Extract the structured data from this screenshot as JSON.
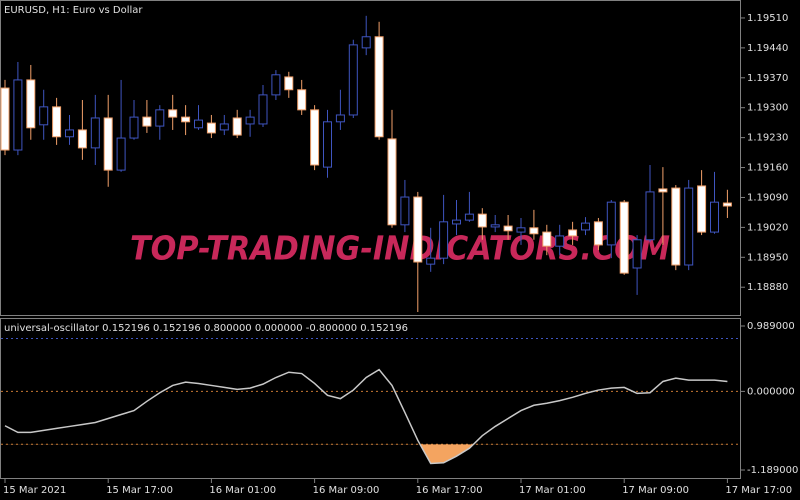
{
  "chart_data": [
    {
      "type": "candlestick",
      "title": "EURUSD, H1:  Euro vs Dollar",
      "watermark": "TOP-TRADING-INDICATORS.COM",
      "categories": [
        "15 Mar 2021",
        null,
        null,
        null,
        null,
        null,
        null,
        null,
        "15 Mar 17:00",
        null,
        null,
        null,
        null,
        null,
        null,
        null,
        "16 Mar 01:00",
        null,
        null,
        null,
        null,
        null,
        null,
        null,
        "16 Mar 09:00",
        null,
        null,
        null,
        null,
        null,
        null,
        null,
        "16 Mar 17:00",
        null,
        null,
        null,
        null,
        null,
        null,
        null,
        "17 Mar 01:00",
        null,
        null,
        null,
        null,
        null,
        null,
        null,
        "17 Mar 09:00",
        null,
        null,
        null,
        null,
        null,
        null,
        null,
        "17 Mar 17:00"
      ],
      "open": [
        1.19346,
        1.19201,
        1.19365,
        1.1926,
        1.19302,
        1.19232,
        1.19248,
        1.19206,
        1.19276,
        1.19154,
        1.19229,
        1.19278,
        1.19257,
        1.19295,
        1.19278,
        1.19253,
        1.19264,
        1.19248,
        1.19276,
        1.19262,
        1.19262,
        1.1933,
        1.19372,
        1.19342,
        1.19295,
        1.19161,
        1.19267,
        1.19283,
        1.1944,
        1.19466,
        1.19227,
        1.19026,
        1.19091,
        1.18934,
        1.18948,
        1.19028,
        1.19037,
        1.19051,
        1.19021,
        1.19023,
        1.19009,
        1.19019,
        1.19009,
        1.18976,
        1.19014,
        1.19014,
        1.19033,
        1.18979,
        1.19079,
        1.18925,
        1.18991,
        1.1911,
        1.19112,
        1.18932,
        1.19117,
        1.19009,
        1.19077
      ],
      "high": [
        1.19365,
        1.19407,
        1.194,
        1.19342,
        1.19323,
        1.19283,
        1.19318,
        1.1933,
        1.1933,
        1.19365,
        1.19318,
        1.19318,
        1.19306,
        1.1933,
        1.19306,
        1.19306,
        1.19283,
        1.19283,
        1.19295,
        1.19295,
        1.19353,
        1.19388,
        1.19384,
        1.19365,
        1.19306,
        1.19295,
        1.19342,
        1.19459,
        1.19515,
        1.19501,
        1.19295,
        1.19131,
        1.19103,
        1.19019,
        1.19096,
        1.19084,
        1.19103,
        1.19065,
        1.19049,
        1.19049,
        1.19042,
        1.19061,
        1.19026,
        1.19026,
        1.19033,
        1.19044,
        1.19042,
        1.19084,
        1.19084,
        1.19002,
        1.19166,
        1.19161,
        1.19119,
        1.19131,
        1.19154,
        1.1915,
        1.19108
      ],
      "low": [
        1.19189,
        1.19189,
        1.19225,
        1.19225,
        1.19213,
        1.19213,
        1.19178,
        1.19166,
        1.19115,
        1.1915,
        1.19225,
        1.19241,
        1.19225,
        1.19248,
        1.19236,
        1.19248,
        1.19229,
        1.19236,
        1.19229,
        1.19232,
        1.19255,
        1.19318,
        1.19323,
        1.19283,
        1.19154,
        1.19136,
        1.19248,
        1.19276,
        1.19423,
        1.19225,
        1.19019,
        1.19009,
        1.18822,
        1.18916,
        1.18934,
        1.19002,
        1.19033,
        1.18991,
        1.19009,
        1.18991,
        1.18979,
        1.18991,
        1.18955,
        1.18955,
        1.18979,
        1.19002,
        1.18967,
        1.18948,
        1.18909,
        1.18862,
        1.18986,
        1.18979,
        1.1892,
        1.1892,
        1.19002,
        1.19005,
        1.19042
      ],
      "close": [
        1.19201,
        1.19365,
        1.19253,
        1.19302,
        1.19232,
        1.19248,
        1.19206,
        1.19276,
        1.19154,
        1.19229,
        1.19278,
        1.19257,
        1.19295,
        1.19278,
        1.19267,
        1.19271,
        1.19241,
        1.19262,
        1.19236,
        1.19278,
        1.1933,
        1.19377,
        1.19342,
        1.19295,
        1.19166,
        1.19267,
        1.19283,
        1.19447,
        1.19466,
        1.19232,
        1.19026,
        1.19091,
        1.18939,
        1.18948,
        1.19033,
        1.19037,
        1.19051,
        1.19021,
        1.19026,
        1.19012,
        1.19019,
        1.19005,
        1.18976,
        1.19,
        1.19,
        1.1903,
        1.18979,
        1.19079,
        1.18913,
        1.18991,
        1.19103,
        1.19103,
        1.18932,
        1.19112,
        1.19009,
        1.19079,
        1.1907
      ],
      "up_color": "#3f55c0",
      "down_color": "#f2a06a",
      "down_body_color": "#ffffff",
      "ylim": [
        1.18815,
        1.19552
      ],
      "yticks": [
        {
          "value": 1.1951,
          "label": "1.19510"
        },
        {
          "value": 1.1944,
          "label": "1.19440"
        },
        {
          "value": 1.1937,
          "label": "1.19370"
        },
        {
          "value": 1.193,
          "label": "1.19300"
        },
        {
          "value": 1.1923,
          "label": "1.19230"
        },
        {
          "value": 1.1916,
          "label": "1.19160"
        },
        {
          "value": 1.1909,
          "label": "1.19090"
        },
        {
          "value": 1.1902,
          "label": "1.19020"
        },
        {
          "value": 1.1895,
          "label": "1.18950"
        },
        {
          "value": 1.1888,
          "label": "1.18880"
        }
      ]
    },
    {
      "type": "line",
      "title": "universal-oscillator 0.152196 0.152196 0.800000 0.000000 -0.800000 0.152196",
      "series": [
        {
          "color": "#c8c8c8",
          "values": [
            -0.52,
            -0.62,
            -0.62,
            -0.59,
            -0.56,
            -0.53,
            -0.5,
            -0.47,
            -0.41,
            -0.35,
            -0.29,
            -0.15,
            -0.02,
            0.09,
            0.14,
            0.12,
            0.09,
            0.06,
            0.03,
            0.05,
            0.11,
            0.21,
            0.29,
            0.27,
            0.12,
            -0.06,
            -0.11,
            0.02,
            0.21,
            0.33,
            0.09,
            -0.32,
            -0.74,
            -1.09,
            -1.08,
            -0.98,
            -0.86,
            -0.67,
            -0.53,
            -0.41,
            -0.29,
            -0.21,
            -0.18,
            -0.14,
            -0.09,
            -0.03,
            0.02,
            0.05,
            0.06,
            -0.03,
            -0.02,
            0.15,
            0.2,
            0.17,
            0.17,
            0.17,
            0.15
          ]
        }
      ],
      "levels": [
        {
          "value": 0.8,
          "color": "#3f55c0"
        },
        {
          "value": 0,
          "color": "#c87832"
        },
        {
          "value": -0.8,
          "color": "#c87832"
        }
      ],
      "fill_below": -0.8,
      "fill_color": "#f4a460",
      "ylim": [
        -1.189,
        0.989
      ],
      "yticks": [
        {
          "value": 0.989,
          "label": "0.989000"
        },
        {
          "value": 0,
          "label": "0.000000"
        },
        {
          "value": -1.189,
          "label": "-1.189000"
        }
      ]
    }
  ]
}
